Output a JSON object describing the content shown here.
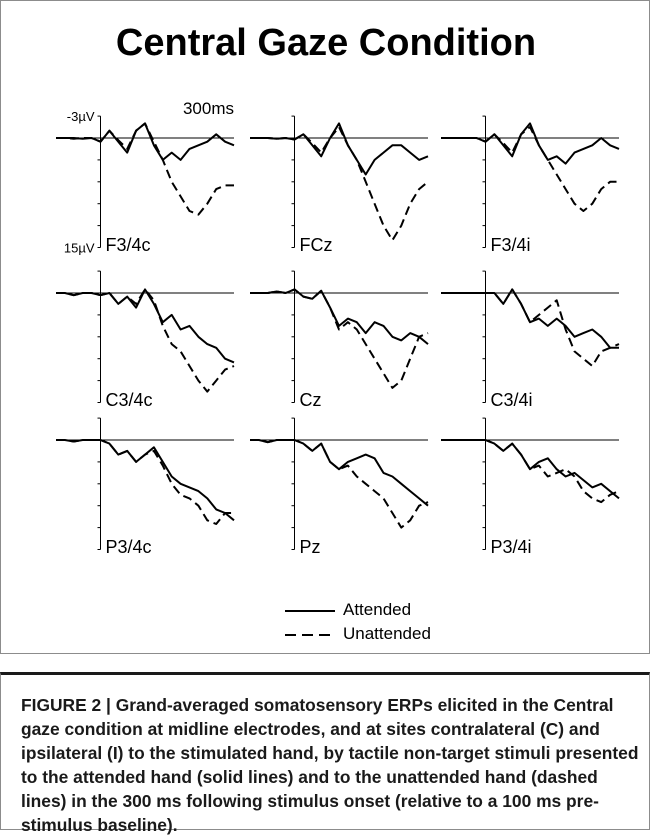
{
  "figure": {
    "title": "Central Gaze Condition",
    "caption": "FIGURE 2 | Grand-averaged somatosensory ERPs elicited in the Central gaze condition at midline electrodes, and at sites contralateral (C) and ipsilateral (I) to the stimulated hand, by tactile non-target stimuli presented to the attended hand (solid lines) and to the unattended hand (dashed lines) in the 300 ms following stimulus onset (relative to a 100 ms pre-stimulus baseline)."
  },
  "legend": {
    "attended_label": "Attended",
    "unattended_label": "Unattended"
  },
  "chart_data": {
    "type": "line",
    "axis_labels": {
      "y_top": "-3µV",
      "y_bottom": "15µV",
      "x_end": "300ms"
    },
    "xlim": [
      -100,
      300
    ],
    "ylim": [
      -3,
      15
    ],
    "x": [
      -100,
      -80,
      -60,
      -40,
      -20,
      0,
      20,
      40,
      60,
      80,
      100,
      120,
      140,
      160,
      180,
      200,
      220,
      240,
      260,
      280,
      300
    ],
    "panels": [
      {
        "label": "F3/4c",
        "series": [
          {
            "name": "Attended",
            "values": [
              0,
              0,
              0,
              0.1,
              0,
              0.5,
              -1,
              0.5,
              2,
              -1,
              -2,
              1,
              3,
              2,
              3,
              1.5,
              1,
              0.5,
              -0.5,
              0.5,
              1
            ]
          },
          {
            "name": "Unattended",
            "values": [
              0,
              0,
              0.1,
              0,
              0,
              0.5,
              -1,
              0.3,
              1.5,
              -1,
              -2,
              0.5,
              3,
              6,
              8,
              10,
              10.5,
              9,
              7,
              6.5,
              6.5
            ]
          }
        ]
      },
      {
        "label": "FCz",
        "series": [
          {
            "name": "Attended",
            "values": [
              0,
              0,
              0,
              0.1,
              0,
              0.2,
              -0.5,
              1,
              2.5,
              0,
              -2,
              1,
              3,
              5,
              3,
              2,
              1,
              1,
              2,
              3,
              2.5
            ]
          },
          {
            "name": "Unattended",
            "values": [
              0,
              0,
              0,
              0.1,
              0,
              0.2,
              -0.5,
              0.7,
              2,
              0,
              -1.5,
              1,
              3,
              6,
              9,
              12,
              14,
              12,
              9,
              7,
              6
            ]
          }
        ]
      },
      {
        "label": "F3/4i",
        "series": [
          {
            "name": "Attended",
            "values": [
              0,
              0,
              0,
              0,
              0,
              0.5,
              -0.5,
              1,
              2.5,
              -0.5,
              -2,
              1,
              3,
              2.5,
              3.5,
              2,
              1.5,
              1,
              0,
              1,
              1.5
            ]
          },
          {
            "name": "Unattended",
            "values": [
              0,
              0,
              0,
              0,
              0,
              0.5,
              -0.5,
              0.7,
              2,
              -0.5,
              -1.5,
              1,
              3,
              5,
              7,
              9,
              10,
              9,
              7,
              6,
              6
            ]
          }
        ]
      },
      {
        "label": "C3/4c",
        "series": [
          {
            "name": "Attended",
            "values": [
              0,
              0,
              0.3,
              0,
              0,
              0.3,
              0,
              1.5,
              0.5,
              2,
              -0.5,
              1.5,
              4,
              3,
              5,
              4.5,
              6,
              7,
              7.5,
              9,
              9.5
            ]
          },
          {
            "name": "Unattended",
            "values": [
              0,
              0,
              0.3,
              0,
              0,
              0.3,
              0,
              1.5,
              0.5,
              1.5,
              -0.5,
              1,
              4.5,
              7,
              8,
              10,
              12,
              13.5,
              12,
              10.5,
              10
            ]
          }
        ]
      },
      {
        "label": "Cz",
        "series": [
          {
            "name": "Attended",
            "values": [
              0,
              0,
              0,
              -0.2,
              0,
              -0.5,
              0.5,
              0.8,
              -0.3,
              2,
              4.5,
              3.5,
              4,
              5.5,
              4,
              4.5,
              6,
              6.5,
              5.5,
              6,
              7
            ]
          },
          {
            "name": "Unattended",
            "values": [
              0,
              0,
              0,
              -0.2,
              0,
              -0.5,
              0.5,
              0.8,
              -0.3,
              2,
              5,
              4,
              5,
              7,
              9,
              11,
              13,
              12,
              9,
              6,
              5.5
            ]
          }
        ]
      },
      {
        "label": "C3/4i",
        "series": [
          {
            "name": "Attended",
            "values": [
              0,
              0,
              0,
              0,
              0,
              0,
              0,
              1.5,
              -0.5,
              1.5,
              4,
              3.5,
              4.5,
              3.5,
              4.5,
              6,
              5.5,
              5,
              6,
              7.5,
              7.5
            ]
          },
          {
            "name": "Unattended",
            "values": [
              0,
              0,
              0,
              0,
              0,
              0,
              0,
              1.5,
              -0.5,
              1.5,
              4,
              3,
              2,
              1,
              5,
              8,
              9,
              10,
              8,
              7.5,
              7
            ]
          }
        ]
      },
      {
        "label": "P3/4c",
        "series": [
          {
            "name": "Attended",
            "values": [
              0,
              0,
              0.2,
              0,
              0,
              0,
              0.5,
              2,
              1.5,
              3,
              2,
              1,
              3,
              5,
              6,
              6.5,
              7,
              8,
              9.5,
              10,
              11
            ]
          },
          {
            "name": "Unattended",
            "values": [
              0,
              0,
              0.2,
              0,
              0,
              0,
              0.5,
              2,
              1.5,
              3,
              2,
              1.5,
              3.5,
              6,
              7.5,
              8,
              9,
              11,
              11.5,
              10,
              10
            ]
          }
        ]
      },
      {
        "label": "Pz",
        "series": [
          {
            "name": "Attended",
            "values": [
              0,
              0,
              0.3,
              0,
              0,
              0,
              0.5,
              1.5,
              0.5,
              3,
              4,
              3,
              2.5,
              2,
              2.5,
              4.5,
              5,
              6,
              7,
              8,
              9
            ]
          },
          {
            "name": "Unattended",
            "values": [
              0,
              0,
              0.3,
              0,
              0,
              0,
              0.5,
              1.5,
              0.5,
              3,
              4,
              3.5,
              5,
              6,
              7,
              8,
              10,
              12,
              11,
              9,
              8.5
            ]
          }
        ]
      },
      {
        "label": "P3/4i",
        "series": [
          {
            "name": "Attended",
            "values": [
              0,
              0,
              0,
              0,
              0,
              0,
              0.5,
              1.5,
              0.5,
              2,
              4,
              3,
              2.5,
              4,
              5,
              4.5,
              5.5,
              6.5,
              6,
              7,
              8
            ]
          },
          {
            "name": "Unattended",
            "values": [
              0,
              0,
              0,
              0,
              0,
              0,
              0.5,
              1.5,
              0.5,
              2,
              4,
              3.5,
              5,
              4.5,
              4,
              5,
              7,
              8,
              8.5,
              7.5,
              7
            ]
          }
        ]
      }
    ]
  }
}
